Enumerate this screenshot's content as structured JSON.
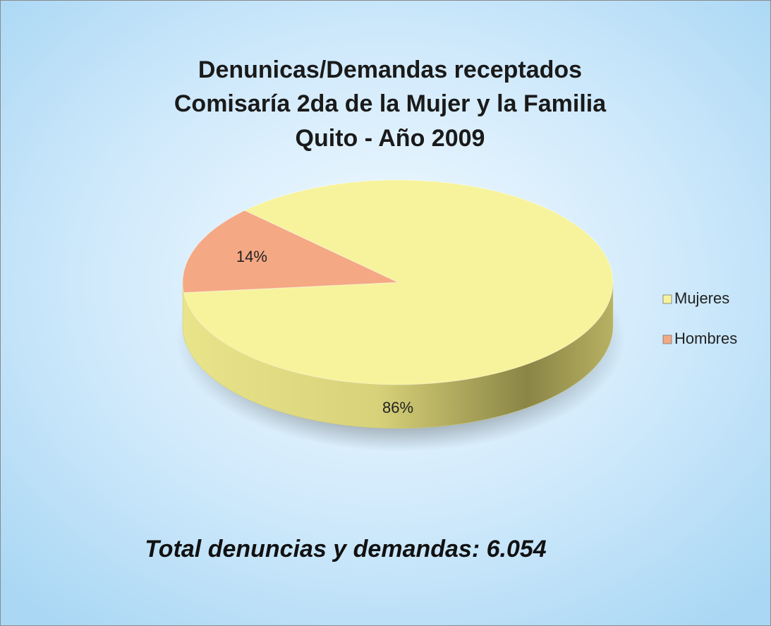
{
  "chart_data": {
    "type": "pie",
    "title": [
      "Denunicas/Demandas receptados",
      "Comisaría 2da de la Mujer y la Familia",
      "Quito - Año 2009"
    ],
    "categories": [
      "Mujeres",
      "Hombres"
    ],
    "values": [
      86,
      14
    ],
    "value_labels": [
      "86%",
      "14%"
    ],
    "colors": [
      "#f7f39c",
      "#f4a884"
    ],
    "legend": "right",
    "annotation": "Total denuncias y demandas: 6.054"
  }
}
